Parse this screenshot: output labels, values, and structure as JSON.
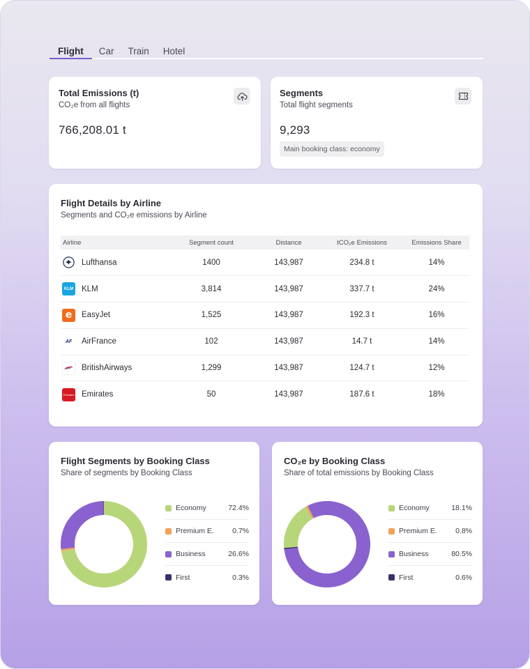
{
  "tabs": [
    {
      "label": "Flight",
      "active": true
    },
    {
      "label": "Car",
      "active": false
    },
    {
      "label": "Train",
      "active": false
    },
    {
      "label": "Hotel",
      "active": false
    }
  ],
  "emissions_card": {
    "title": "Total Emissions (t)",
    "subtitle": "CO₂e from all flights",
    "value": "766,208.01 t",
    "icon": "cloud-upload-icon"
  },
  "segments_card": {
    "title": "Segments",
    "subtitle": "Total flight segments",
    "value": "9,293",
    "chip": "Main booking class: economy",
    "icon": "ticket-icon"
  },
  "airline_table": {
    "title": "Flight Details by Airline",
    "subtitle": "Segments and CO₂e emissions by Airline",
    "headers": [
      "Airline",
      "Segment count",
      "Distance",
      "tCO₂e Emissions",
      "Emissions Share"
    ],
    "rows": [
      {
        "airline": "Lufthansa",
        "logo": "lufthansa-logo",
        "segments": "1400",
        "distance": "143,987",
        "emissions": "234.8 t",
        "share": "14%"
      },
      {
        "airline": "KLM",
        "logo": "klm-logo",
        "segments": "3,814",
        "distance": "143,987",
        "emissions": "337.7 t",
        "share": "24%"
      },
      {
        "airline": "EasyJet",
        "logo": "easyjet-logo",
        "segments": "1,525",
        "distance": "143,987",
        "emissions": "192.3 t",
        "share": "16%"
      },
      {
        "airline": "AirFrance",
        "logo": "airfrance-logo",
        "segments": "102",
        "distance": "143,987",
        "emissions": "14.7 t",
        "share": "14%"
      },
      {
        "airline": "BritishAirways",
        "logo": "britishairways-logo",
        "segments": "1,299",
        "distance": "143,987",
        "emissions": "124.7 t",
        "share": "12%"
      },
      {
        "airline": "Emirates",
        "logo": "emirates-logo",
        "segments": "50",
        "distance": "143,987",
        "emissions": "187.6 t",
        "share": "18%"
      }
    ],
    "logo_text": {
      "klm": "KLM",
      "easyjet": "e",
      "airfrance": "AF",
      "emirates": "Emirates"
    }
  },
  "colors": {
    "Economy": "#b7d67a",
    "Premium E.": "#f2a15a",
    "Business": "#8a62cf",
    "First": "#3b2f6b",
    "accent": "#7c5ccc"
  },
  "segments_donut": {
    "title": "Flight Segments by Booking Class",
    "subtitle": "Share of segments by Booking Class",
    "items": [
      {
        "label": "Economy",
        "display": "72.4%",
        "value": 72.4
      },
      {
        "label": "Premium E.",
        "display": "0.7%",
        "value": 0.7
      },
      {
        "label": "Business",
        "display": "26.6%",
        "value": 26.6
      },
      {
        "label": "First",
        "display": "0.3%",
        "value": 0.3
      }
    ]
  },
  "co2_donut": {
    "title": "CO₂e by Booking Class",
    "subtitle": "Share of total emissions by Booking Class",
    "items": [
      {
        "label": "Economy",
        "display": "18.1%",
        "value": 18.1
      },
      {
        "label": "Premium E.",
        "display": "0.8%",
        "value": 0.8
      },
      {
        "label": "Business",
        "display": "80.5%",
        "value": 80.5
      },
      {
        "label": "First",
        "display": "0.6%",
        "value": 0.6
      }
    ]
  }
}
